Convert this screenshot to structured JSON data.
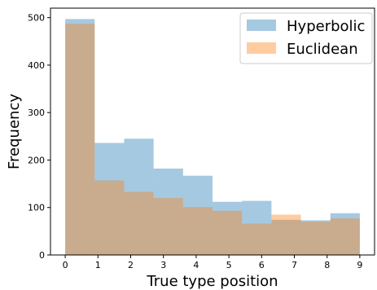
{
  "chart_data": {
    "type": "histogram",
    "xlabel": "True type position",
    "ylabel": "Frequency",
    "xlim": [
      -0.45,
      9.45
    ],
    "ylim": [
      0,
      520
    ],
    "x_ticks": [
      0,
      1,
      2,
      3,
      4,
      5,
      6,
      7,
      8,
      9
    ],
    "y_ticks": [
      0,
      100,
      200,
      300,
      400,
      500
    ],
    "bin_edges": [
      0,
      0.9,
      1.8,
      2.7,
      3.6,
      4.5,
      5.4,
      6.3,
      7.2,
      8.1,
      9.0
    ],
    "legend_position": "top-right",
    "series": [
      {
        "name": "Hyperbolic",
        "color": "#1f77b4",
        "opacity": 0.4,
        "values": [
          497,
          236,
          245,
          182,
          167,
          112,
          114,
          74,
          73,
          88
        ]
      },
      {
        "name": "Euclidean",
        "color": "#ff7f0e",
        "opacity": 0.4,
        "values": [
          487,
          157,
          133,
          120,
          101,
          93,
          66,
          85,
          70,
          77
        ]
      }
    ]
  }
}
